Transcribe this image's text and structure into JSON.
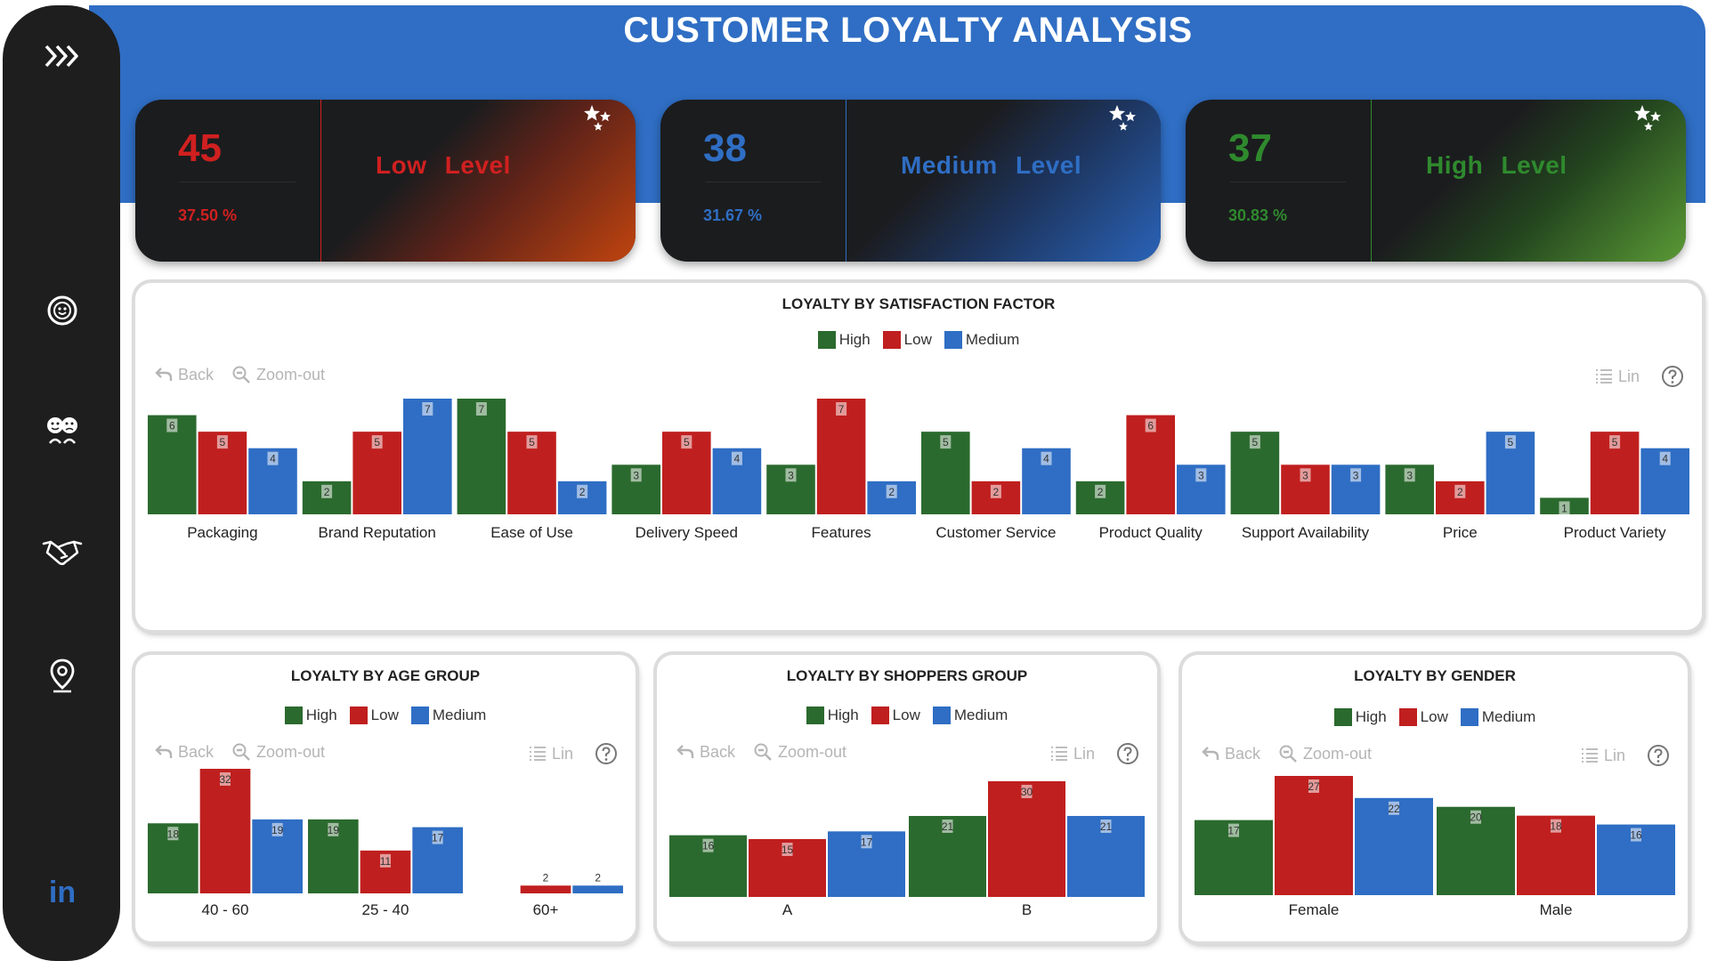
{
  "header": {
    "title": "CUSTOMER LOYALTY ANALYSIS"
  },
  "sidebar": {
    "icons": [
      "expand-icon",
      "customer-icon",
      "feedback-faces-icon",
      "handshake-icon",
      "location-icon",
      "linkedin-icon"
    ],
    "linkedin": "in"
  },
  "colors": {
    "High": "#2b6a2e",
    "Low": "#c01f1f",
    "Medium": "#2f6ec4",
    "accent": "#2f6ec4"
  },
  "kpis": [
    {
      "count": "45",
      "percent": "37.50 %",
      "level": "Low  Level",
      "color": "#d02020"
    },
    {
      "count": "38",
      "percent": "31.67 %",
      "level": "Medium  Level",
      "color": "#2f6ec4"
    },
    {
      "count": "37",
      "percent": "30.83 %",
      "level": "High  Level",
      "color": "#2f8a2e"
    }
  ],
  "toolbar": {
    "back": "Back",
    "zoom_out": "Zoom-out",
    "lin": "Lin"
  },
  "legend": [
    "High",
    "Low",
    "Medium"
  ],
  "chart_data": [
    {
      "type": "bar",
      "title": "LOYALTY BY SATISFACTION FACTOR",
      "categories": [
        "Packaging",
        "Brand Reputation",
        "Ease of Use",
        "Delivery Speed",
        "Features",
        "Customer Service",
        "Product Quality",
        "Support Availability",
        "Price",
        "Product Variety"
      ],
      "series": [
        {
          "name": "High",
          "values": [
            6,
            2,
            7,
            3,
            3,
            5,
            2,
            5,
            3,
            1
          ]
        },
        {
          "name": "Low",
          "values": [
            5,
            5,
            5,
            5,
            7,
            2,
            6,
            3,
            2,
            5
          ]
        },
        {
          "name": "Medium",
          "values": [
            4,
            7,
            2,
            4,
            2,
            4,
            3,
            3,
            5,
            4
          ]
        }
      ],
      "ylim": [
        0,
        7
      ],
      "legend_position": "top"
    },
    {
      "type": "bar",
      "title": "LOYALTY  BY  AGE  GROUP",
      "categories": [
        "40 - 60",
        "25 - 40",
        "60+"
      ],
      "series": [
        {
          "name": "High",
          "values": [
            18,
            19,
            0
          ]
        },
        {
          "name": "Low",
          "values": [
            32,
            11,
            2
          ]
        },
        {
          "name": "Medium",
          "values": [
            19,
            17,
            2
          ]
        }
      ],
      "ylim": [
        0,
        32
      ],
      "legend_position": "top"
    },
    {
      "type": "bar",
      "title": "LOYALTY BY SHOPPERS GROUP",
      "categories": [
        "A",
        "B"
      ],
      "series": [
        {
          "name": "High",
          "values": [
            16,
            21
          ]
        },
        {
          "name": "Low",
          "values": [
            15,
            30
          ]
        },
        {
          "name": "Medium",
          "values": [
            17,
            21
          ]
        }
      ],
      "ylim": [
        0,
        30
      ],
      "legend_position": "top"
    },
    {
      "type": "bar",
      "title": "LOYALTY BY GENDER",
      "categories": [
        "Female",
        "Male"
      ],
      "series": [
        {
          "name": "High",
          "values": [
            17,
            20
          ]
        },
        {
          "name": "Low",
          "values": [
            27,
            18
          ]
        },
        {
          "name": "Medium",
          "values": [
            22,
            16
          ]
        }
      ],
      "ylim": [
        0,
        27
      ],
      "legend_position": "top"
    }
  ]
}
